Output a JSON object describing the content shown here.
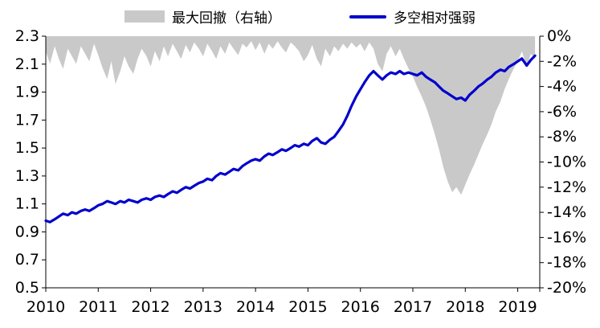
{
  "chart": {
    "legend": [
      {
        "label": "最大回撤（右轴）",
        "series": "drawdown",
        "swatch": "gray-area"
      },
      {
        "label": "多空相对强弱",
        "series": "strength",
        "swatch": "blue-line"
      }
    ],
    "colors": {
      "drawdown": "#c9c9c9",
      "strength": "#0000cd",
      "axis": "#000000",
      "text": "#000000",
      "background": "#ffffff"
    }
  },
  "chart_data": {
    "type": "line",
    "title": "",
    "xlabel": "",
    "ylabel_left": "",
    "ylabel_right": "",
    "grid": false,
    "legend_position": "top-center",
    "x_axis": {
      "min": 2010,
      "max": 2019.42,
      "tick_values": [
        2010,
        2011,
        2012,
        2013,
        2014,
        2015,
        2016,
        2017,
        2018,
        2019
      ],
      "tick_labels": [
        "2010",
        "2011",
        "2012",
        "2013",
        "2014",
        "2015",
        "2016",
        "2017",
        "2018",
        "2019"
      ]
    },
    "left_axis": {
      "min": 0.5,
      "max": 2.3,
      "tick_values": [
        2.3,
        2.1,
        1.9,
        1.7,
        1.5,
        1.3,
        1.1,
        0.9,
        0.7,
        0.5
      ],
      "tick_labels": [
        "2.3",
        "2.1",
        "1.9",
        "1.7",
        "1.5",
        "1.3",
        "1.1",
        "0.9",
        "0.7",
        "0.5"
      ]
    },
    "right_axis": {
      "min": -20,
      "max": 0,
      "unit": "%",
      "tick_values": [
        0,
        -2,
        -4,
        -6,
        -8,
        -10,
        -12,
        -14,
        -16,
        -18,
        -20
      ],
      "tick_labels": [
        "0%",
        "-2%",
        "-4%",
        "-6%",
        "-8%",
        "-10%",
        "-12%",
        "-14%",
        "-16%",
        "-18%",
        "-20%"
      ]
    },
    "x": [
      2010.0,
      2010.08,
      2010.17,
      2010.25,
      2010.33,
      2010.42,
      2010.5,
      2010.58,
      2010.67,
      2010.75,
      2010.83,
      2010.92,
      2011.0,
      2011.08,
      2011.17,
      2011.25,
      2011.33,
      2011.42,
      2011.5,
      2011.58,
      2011.67,
      2011.75,
      2011.83,
      2011.92,
      2012.0,
      2012.08,
      2012.17,
      2012.25,
      2012.33,
      2012.42,
      2012.5,
      2012.58,
      2012.67,
      2012.75,
      2012.83,
      2012.92,
      2013.0,
      2013.08,
      2013.17,
      2013.25,
      2013.33,
      2013.42,
      2013.5,
      2013.58,
      2013.67,
      2013.75,
      2013.83,
      2013.92,
      2014.0,
      2014.08,
      2014.17,
      2014.25,
      2014.33,
      2014.42,
      2014.5,
      2014.58,
      2014.67,
      2014.75,
      2014.83,
      2014.92,
      2015.0,
      2015.08,
      2015.17,
      2015.25,
      2015.33,
      2015.42,
      2015.5,
      2015.58,
      2015.67,
      2015.75,
      2015.83,
      2015.92,
      2016.0,
      2016.08,
      2016.17,
      2016.25,
      2016.33,
      2016.42,
      2016.5,
      2016.58,
      2016.67,
      2016.75,
      2016.83,
      2016.92,
      2017.0,
      2017.08,
      2017.17,
      2017.25,
      2017.33,
      2017.42,
      2017.5,
      2017.58,
      2017.67,
      2017.75,
      2017.83,
      2017.92,
      2018.0,
      2018.08,
      2018.17,
      2018.25,
      2018.33,
      2018.42,
      2018.5,
      2018.58,
      2018.67,
      2018.75,
      2018.83,
      2018.92,
      2019.0,
      2019.08,
      2019.17,
      2019.25,
      2019.33
    ],
    "series": [
      {
        "name": "多空相对强弱",
        "type": "line",
        "axis": "left",
        "color": "#0000cd",
        "values": [
          0.98,
          0.97,
          0.99,
          1.01,
          1.03,
          1.02,
          1.04,
          1.03,
          1.05,
          1.06,
          1.05,
          1.07,
          1.09,
          1.1,
          1.12,
          1.11,
          1.1,
          1.12,
          1.11,
          1.13,
          1.12,
          1.11,
          1.13,
          1.14,
          1.13,
          1.15,
          1.16,
          1.15,
          1.17,
          1.19,
          1.18,
          1.2,
          1.22,
          1.21,
          1.23,
          1.25,
          1.26,
          1.28,
          1.27,
          1.3,
          1.32,
          1.31,
          1.33,
          1.35,
          1.34,
          1.37,
          1.39,
          1.41,
          1.42,
          1.41,
          1.44,
          1.46,
          1.45,
          1.47,
          1.49,
          1.48,
          1.5,
          1.52,
          1.51,
          1.53,
          1.52,
          1.55,
          1.57,
          1.54,
          1.53,
          1.56,
          1.58,
          1.62,
          1.67,
          1.73,
          1.8,
          1.87,
          1.92,
          1.97,
          2.02,
          2.05,
          2.02,
          1.99,
          2.02,
          2.04,
          2.03,
          2.05,
          2.03,
          2.04,
          2.03,
          2.02,
          2.04,
          2.01,
          1.99,
          1.97,
          1.94,
          1.91,
          1.89,
          1.87,
          1.85,
          1.86,
          1.84,
          1.88,
          1.91,
          1.94,
          1.96,
          1.99,
          2.01,
          2.04,
          2.06,
          2.05,
          2.08,
          2.1,
          2.12,
          2.14,
          2.09,
          2.13,
          2.16
        ]
      },
      {
        "name": "最大回撤（右轴）",
        "type": "area",
        "axis": "right",
        "color": "#c9c9c9",
        "values": [
          -1.2,
          -2.2,
          -0.8,
          -1.8,
          -2.6,
          -1.0,
          -1.6,
          -2.2,
          -0.8,
          -1.4,
          -2.0,
          -0.6,
          -1.5,
          -2.5,
          -3.4,
          -2.0,
          -3.8,
          -2.8,
          -1.6,
          -2.4,
          -3.0,
          -1.8,
          -1.0,
          -1.6,
          -2.4,
          -1.2,
          -2.0,
          -0.8,
          -1.6,
          -0.6,
          -1.2,
          -1.8,
          -0.7,
          -1.3,
          -0.5,
          -1.0,
          -1.6,
          -0.6,
          -1.2,
          -1.8,
          -0.8,
          -1.4,
          -0.5,
          -1.0,
          -1.5,
          -0.6,
          -0.9,
          -0.4,
          -1.1,
          -0.5,
          -1.4,
          -0.6,
          -1.0,
          -0.4,
          -0.9,
          -1.3,
          -0.5,
          -0.8,
          -1.2,
          -2.0,
          -1.5,
          -0.7,
          -1.8,
          -2.4,
          -1.0,
          -1.6,
          -0.8,
          -1.2,
          -0.6,
          -1.0,
          -0.5,
          -0.9,
          -0.6,
          -1.2,
          -0.5,
          -1.0,
          -2.2,
          -2.8,
          -1.4,
          -0.8,
          -1.6,
          -1.0,
          -1.8,
          -2.6,
          -3.2,
          -4.0,
          -4.8,
          -5.6,
          -6.6,
          -7.8,
          -9.0,
          -10.4,
          -11.6,
          -12.4,
          -12.0,
          -12.6,
          -11.8,
          -11.0,
          -10.2,
          -9.4,
          -8.6,
          -7.8,
          -7.0,
          -6.0,
          -5.2,
          -4.2,
          -3.4,
          -2.6,
          -2.0,
          -1.2,
          -2.4,
          -1.4,
          -1.8
        ]
      }
    ]
  }
}
